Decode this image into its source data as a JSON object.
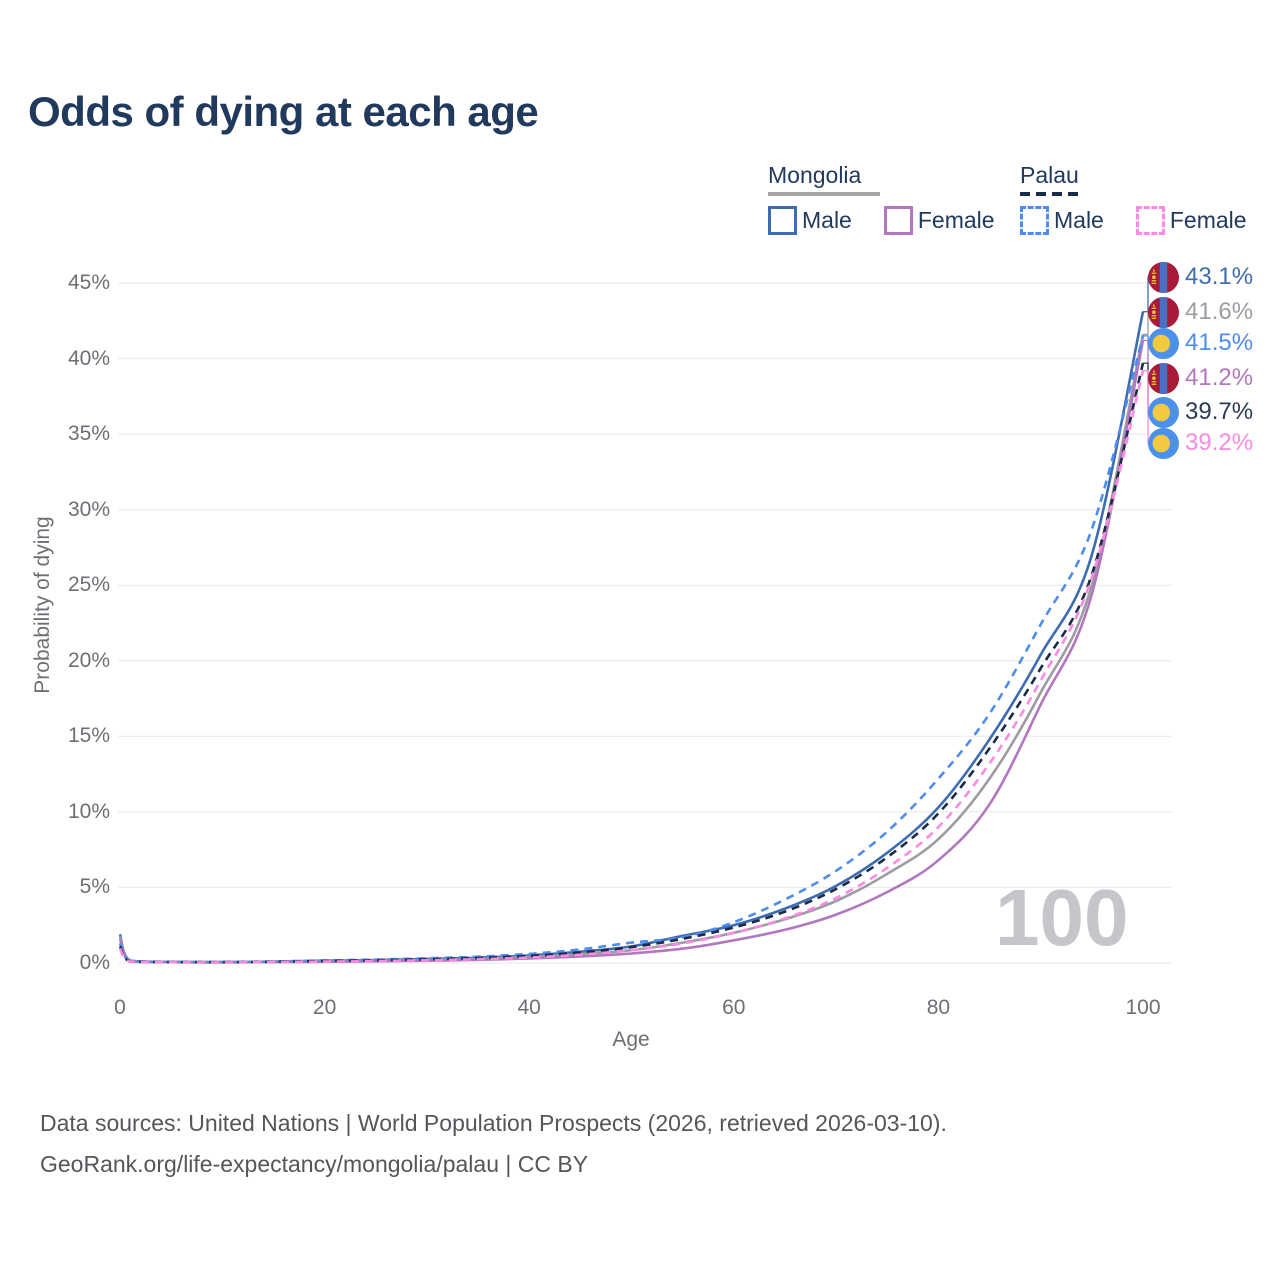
{
  "watermark": "100",
  "legend": {
    "groups": [
      {
        "name": "Mongolia",
        "line_style": "solid",
        "line_color": "#a6a6aa",
        "items": [
          {
            "label": "Male",
            "series": "mongolia-male"
          },
          {
            "label": "Female",
            "series": "mongolia-female"
          }
        ]
      },
      {
        "name": "Palau",
        "line_style": "dashed",
        "line_color": "#1b2b47",
        "items": [
          {
            "label": "Male",
            "series": "palau-male"
          },
          {
            "label": "Female",
            "series": "palau-female"
          }
        ]
      }
    ]
  },
  "end_labels": [
    {
      "flag": "mongolia",
      "series": "mongolia-male",
      "value": "43.1%",
      "color": "#3e6cb0"
    },
    {
      "flag": "mongolia",
      "series": "mongolia-combined",
      "value": "41.6%",
      "color": "#9c9ca2"
    },
    {
      "flag": "palau",
      "series": "palau-male",
      "value": "41.5%",
      "color": "#4e8cf0"
    },
    {
      "flag": "mongolia",
      "series": "mongolia-female",
      "value": "41.2%",
      "color": "#b177bf"
    },
    {
      "flag": "palau",
      "series": "palau-combined",
      "value": "39.7%",
      "color": "#2b3a55"
    },
    {
      "flag": "palau",
      "series": "palau-female",
      "value": "39.2%",
      "color": "#fb8ae2"
    }
  ],
  "footer": {
    "line1": "Data sources: United Nations | World Population Prospects (2026, retrieved 2026-03-10).",
    "line2": "GeoRank.org/life-expectancy/mongolia/palau | CC BY"
  },
  "colors": {
    "title_text": "#21395c",
    "axis_text": "#6e6f74",
    "gridline": "#ececef",
    "watermark": "#c6c6ca",
    "mongolia_flag_red": "#a81b38",
    "mongolia_flag_blue": "#4b6fc4",
    "mongolia_flag_yellow": "#f2c43d",
    "palau_flag_blue": "#4b90ea",
    "palau_flag_yellow": "#f3c93f"
  },
  "chart_data": {
    "type": "line",
    "title": "Odds of dying at each age",
    "xlabel": "Age",
    "ylabel": "Probability of dying",
    "xlim": [
      0,
      100
    ],
    "ylim_pct": [
      0,
      45
    ],
    "grid": true,
    "legend_position": "top-right",
    "hover_age_indicator": "100",
    "x_ticks": [
      {
        "v": 0,
        "label": "0"
      },
      {
        "v": 20,
        "label": "20"
      },
      {
        "v": 40,
        "label": "40"
      },
      {
        "v": 60,
        "label": "60"
      },
      {
        "v": 80,
        "label": "80"
      },
      {
        "v": 100,
        "label": "100"
      }
    ],
    "y_ticks": [
      {
        "v": 0,
        "label": "0%"
      },
      {
        "v": 5,
        "label": "5%"
      },
      {
        "v": 10,
        "label": "10%"
      },
      {
        "v": 15,
        "label": "15%"
      },
      {
        "v": 20,
        "label": "20%"
      },
      {
        "v": 25,
        "label": "25%"
      },
      {
        "v": 30,
        "label": "30%"
      },
      {
        "v": 35,
        "label": "35%"
      },
      {
        "v": 40,
        "label": "40%"
      },
      {
        "v": 45,
        "label": "45%"
      }
    ],
    "ages": [
      0,
      1,
      5,
      10,
      15,
      20,
      25,
      30,
      35,
      40,
      45,
      50,
      55,
      60,
      65,
      70,
      75,
      80,
      85,
      90,
      95,
      100
    ],
    "series": [
      {
        "id": "mongolia-male",
        "country": "Mongolia",
        "sex": "Male",
        "color": "#3e6cb0",
        "dash": "solid",
        "end_value_pct": 43.1,
        "values_pct": [
          1.9,
          0.15,
          0.07,
          0.06,
          0.09,
          0.15,
          0.2,
          0.27,
          0.35,
          0.5,
          0.75,
          1.1,
          1.8,
          2.5,
          3.6,
          5.1,
          7.3,
          10.3,
          14.8,
          20.4,
          27.0,
          43.1
        ]
      },
      {
        "id": "mongolia-combined",
        "country": "Mongolia",
        "sex": "Both",
        "color": "#9c9ca2",
        "dash": "solid",
        "end_value_pct": 41.6,
        "values_pct": [
          1.75,
          0.13,
          0.06,
          0.05,
          0.08,
          0.12,
          0.16,
          0.21,
          0.28,
          0.4,
          0.58,
          0.85,
          1.35,
          2.0,
          2.9,
          4.1,
          5.9,
          8.2,
          12.2,
          17.9,
          25.0,
          41.6
        ]
      },
      {
        "id": "mongolia-female",
        "country": "Mongolia",
        "sex": "Female",
        "color": "#b177bf",
        "dash": "solid",
        "end_value_pct": 41.2,
        "values_pct": [
          1.6,
          0.11,
          0.05,
          0.04,
          0.06,
          0.08,
          0.11,
          0.15,
          0.21,
          0.3,
          0.43,
          0.63,
          0.95,
          1.5,
          2.2,
          3.2,
          4.7,
          6.8,
          10.5,
          17.1,
          24.4,
          41.2
        ]
      },
      {
        "id": "palau-male",
        "country": "Palau",
        "sex": "Male",
        "color": "#4e8cf0",
        "dash": "dashed",
        "end_value_pct": 41.5,
        "values_pct": [
          1.3,
          0.12,
          0.07,
          0.06,
          0.1,
          0.17,
          0.23,
          0.31,
          0.42,
          0.6,
          0.9,
          1.35,
          1.7,
          2.7,
          4.2,
          6.1,
          8.7,
          12.2,
          16.5,
          22.4,
          28.7,
          41.5
        ]
      },
      {
        "id": "palau-combined",
        "country": "Palau",
        "sex": "Both",
        "color": "#1b2b47",
        "dash": "dashed",
        "end_value_pct": 39.7,
        "values_pct": [
          1.1,
          0.1,
          0.06,
          0.05,
          0.08,
          0.13,
          0.18,
          0.24,
          0.33,
          0.47,
          0.7,
          1.05,
          1.6,
          2.35,
          3.4,
          4.9,
          7.0,
          9.9,
          14.2,
          19.5,
          25.7,
          39.7
        ]
      },
      {
        "id": "palau-female",
        "country": "Palau",
        "sex": "Female",
        "color": "#fb8ae2",
        "dash": "dashed",
        "end_value_pct": 39.2,
        "values_pct": [
          0.95,
          0.09,
          0.05,
          0.04,
          0.06,
          0.09,
          0.13,
          0.18,
          0.25,
          0.36,
          0.55,
          0.85,
          1.3,
          2.0,
          2.95,
          4.3,
          6.3,
          9.0,
          13.2,
          18.7,
          25.5,
          39.2
        ]
      }
    ]
  }
}
